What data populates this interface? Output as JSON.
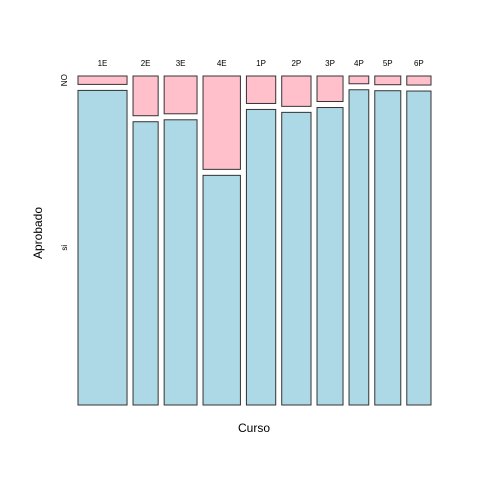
{
  "chart_data": {
    "type": "mosaic",
    "title": "",
    "xlabel": "Curso",
    "ylabel": "Aprobado",
    "categories": [
      "1E",
      "2E",
      "3E",
      "4E",
      "1P",
      "2P",
      "3P",
      "4P",
      "5P",
      "6P"
    ],
    "column_proportions": [
      0.164,
      0.084,
      0.11,
      0.125,
      0.098,
      0.098,
      0.087,
      0.066,
      0.087,
      0.081
    ],
    "row_levels": [
      "NO",
      "si"
    ],
    "series": [
      {
        "name": "NO",
        "values": [
          0.026,
          0.123,
          0.117,
          0.289,
          0.085,
          0.094,
          0.079,
          0.024,
          0.027,
          0.028
        ]
      },
      {
        "name": "si",
        "values": [
          0.974,
          0.877,
          0.883,
          0.711,
          0.915,
          0.906,
          0.921,
          0.976,
          0.973,
          0.972
        ]
      }
    ],
    "colors": {
      "NO": "#ffc0cb",
      "si": "#add8e6",
      "border": "#333333"
    },
    "grid": false
  }
}
